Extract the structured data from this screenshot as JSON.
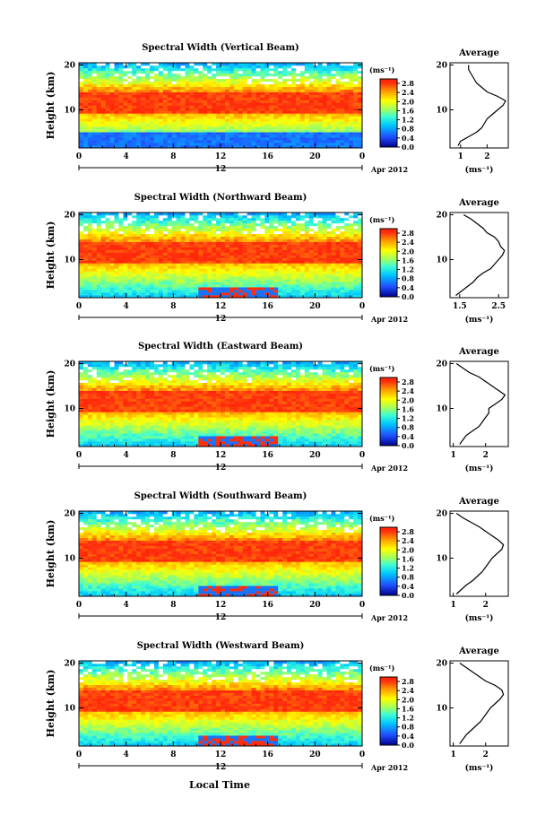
{
  "chart_data": [
    {
      "type": "heatmap",
      "title": "Spectral Width (Vertical Beam)",
      "ylabel": "Height (km)",
      "x_ticks": [
        "0",
        "4",
        "8",
        "12",
        "16",
        "20",
        "0"
      ],
      "y_ticks": [
        "10",
        "20"
      ],
      "date_mark": "12",
      "date_label": "Apr 2012",
      "xlim": [
        0,
        24
      ],
      "ylim": [
        1.5,
        20.5
      ],
      "colorbar": {
        "unit": "(ms⁻¹)",
        "ticks": [
          "2.8",
          "2.4",
          "2.0",
          "1.6",
          "1.2",
          "0.8",
          "0.4",
          "0.0"
        ]
      },
      "average_profile": {
        "title": "Average",
        "x_ticks": [
          "1",
          "2"
        ],
        "y_ticks": [
          "10",
          "20"
        ],
        "xlabel": "(ms⁻¹)",
        "xlim": [
          0.6,
          2.8
        ],
        "heights": [
          2,
          3,
          4,
          5,
          6,
          7,
          8,
          9,
          10,
          11,
          12,
          13,
          14,
          15,
          16,
          17,
          18,
          19,
          20
        ],
        "values": [
          0.9,
          1.0,
          1.3,
          1.6,
          1.8,
          1.9,
          2.0,
          2.2,
          2.4,
          2.6,
          2.7,
          2.4,
          2.0,
          1.8,
          1.6,
          1.5,
          1.4,
          1.3,
          1.3
        ]
      }
    },
    {
      "type": "heatmap",
      "title": "Spectral Width (Northward Beam)",
      "ylabel": "Height (km)",
      "x_ticks": [
        "0",
        "4",
        "8",
        "12",
        "16",
        "20",
        "0"
      ],
      "y_ticks": [
        "10",
        "20"
      ],
      "date_mark": "12",
      "date_label": "Apr 2012",
      "xlim": [
        0,
        24
      ],
      "ylim": [
        1.5,
        20.5
      ],
      "colorbar": {
        "unit": "(ms⁻¹)",
        "ticks": [
          "2.8",
          "2.4",
          "2.0",
          "1.6",
          "1.2",
          "0.8",
          "0.4",
          "0.0"
        ]
      },
      "average_profile": {
        "title": "Average",
        "x_ticks": [
          "1.5",
          "2.5"
        ],
        "y_ticks": [
          "10",
          "20"
        ],
        "xlabel": "(ms⁻¹)",
        "xlim": [
          1.25,
          2.75
        ],
        "heights": [
          2,
          3,
          4,
          5,
          6,
          7,
          8,
          9,
          10,
          11,
          12,
          13,
          14,
          15,
          16,
          17,
          18,
          19,
          20
        ],
        "values": [
          1.4,
          1.55,
          1.7,
          1.85,
          1.95,
          2.1,
          2.3,
          2.4,
          2.5,
          2.6,
          2.65,
          2.55,
          2.5,
          2.4,
          2.2,
          2.1,
          1.95,
          1.8,
          1.6
        ]
      }
    },
    {
      "type": "heatmap",
      "title": "Spectral Width (Eastward Beam)",
      "ylabel": "Height (km)",
      "x_ticks": [
        "0",
        "4",
        "8",
        "12",
        "16",
        "20",
        "0"
      ],
      "y_ticks": [
        "10",
        "20"
      ],
      "date_mark": "12",
      "date_label": "Apr 2012",
      "xlim": [
        0,
        24
      ],
      "ylim": [
        1.5,
        20.5
      ],
      "colorbar": {
        "unit": "(ms⁻¹)",
        "ticks": [
          "2.8",
          "2.4",
          "2.0",
          "1.6",
          "1.2",
          "0.8",
          "0.4",
          "0.0"
        ]
      },
      "average_profile": {
        "title": "Average",
        "x_ticks": [
          "1",
          "2"
        ],
        "y_ticks": [
          "10",
          "20"
        ],
        "xlabel": "(ms⁻¹)",
        "xlim": [
          0.9,
          2.7
        ],
        "heights": [
          2,
          3,
          4,
          5,
          6,
          7,
          8,
          9,
          10,
          11,
          12,
          13,
          14,
          15,
          16,
          17,
          18,
          19,
          20
        ],
        "values": [
          1.2,
          1.3,
          1.4,
          1.6,
          1.8,
          1.9,
          2.0,
          2.1,
          2.1,
          2.3,
          2.5,
          2.6,
          2.4,
          2.2,
          2.0,
          1.8,
          1.5,
          1.3,
          1.1
        ]
      }
    },
    {
      "type": "heatmap",
      "title": "Spectral Width (Southward Beam)",
      "ylabel": "Height (km)",
      "x_ticks": [
        "0",
        "4",
        "8",
        "12",
        "16",
        "20",
        "0"
      ],
      "y_ticks": [
        "10",
        "20"
      ],
      "date_mark": "12",
      "date_label": "Apr 2012",
      "xlim": [
        0,
        24
      ],
      "ylim": [
        1.5,
        20.5
      ],
      "colorbar": {
        "unit": "(ms⁻¹)",
        "ticks": [
          "2.8",
          "2.4",
          "2.0",
          "1.6",
          "1.2",
          "0.8",
          "0.4",
          "0.0"
        ]
      },
      "average_profile": {
        "title": "Average",
        "x_ticks": [
          "1",
          "2"
        ],
        "y_ticks": [
          "10",
          "20"
        ],
        "xlabel": "(ms⁻¹)",
        "xlim": [
          0.9,
          2.7
        ],
        "heights": [
          2,
          3,
          4,
          5,
          6,
          7,
          8,
          9,
          10,
          11,
          12,
          13,
          14,
          15,
          16,
          17,
          18,
          19,
          20
        ],
        "values": [
          1.1,
          1.25,
          1.4,
          1.6,
          1.75,
          1.9,
          2.0,
          2.1,
          2.2,
          2.35,
          2.5,
          2.55,
          2.4,
          2.2,
          2.0,
          1.8,
          1.55,
          1.3,
          1.1
        ]
      }
    },
    {
      "type": "heatmap",
      "title": "Spectral Width (Westward Beam)",
      "ylabel": "Height (km)",
      "x_ticks": [
        "0",
        "4",
        "8",
        "12",
        "16",
        "20",
        "0"
      ],
      "y_ticks": [
        "10",
        "20"
      ],
      "date_mark": "12",
      "date_label": "Apr 2012",
      "xlim": [
        0,
        24
      ],
      "ylim": [
        1.5,
        20.5
      ],
      "colorbar": {
        "unit": "(ms⁻¹)",
        "ticks": [
          "2.8",
          "2.4",
          "2.0",
          "1.6",
          "1.2",
          "0.8",
          "0.4",
          "0.0"
        ]
      },
      "average_profile": {
        "title": "Average",
        "x_ticks": [
          "1",
          "2"
        ],
        "y_ticks": [
          "10",
          "20"
        ],
        "xlabel": "(ms⁻¹)",
        "xlim": [
          0.9,
          2.7
        ],
        "heights": [
          2,
          3,
          4,
          5,
          6,
          7,
          8,
          9,
          10,
          11,
          12,
          13,
          14,
          15,
          16,
          17,
          18,
          19,
          20
        ],
        "values": [
          1.2,
          1.3,
          1.4,
          1.55,
          1.7,
          1.85,
          1.95,
          2.05,
          2.15,
          2.3,
          2.45,
          2.55,
          2.5,
          2.3,
          2.0,
          1.8,
          1.6,
          1.4,
          1.2
        ]
      }
    }
  ],
  "xaxis_label": "Local Time"
}
